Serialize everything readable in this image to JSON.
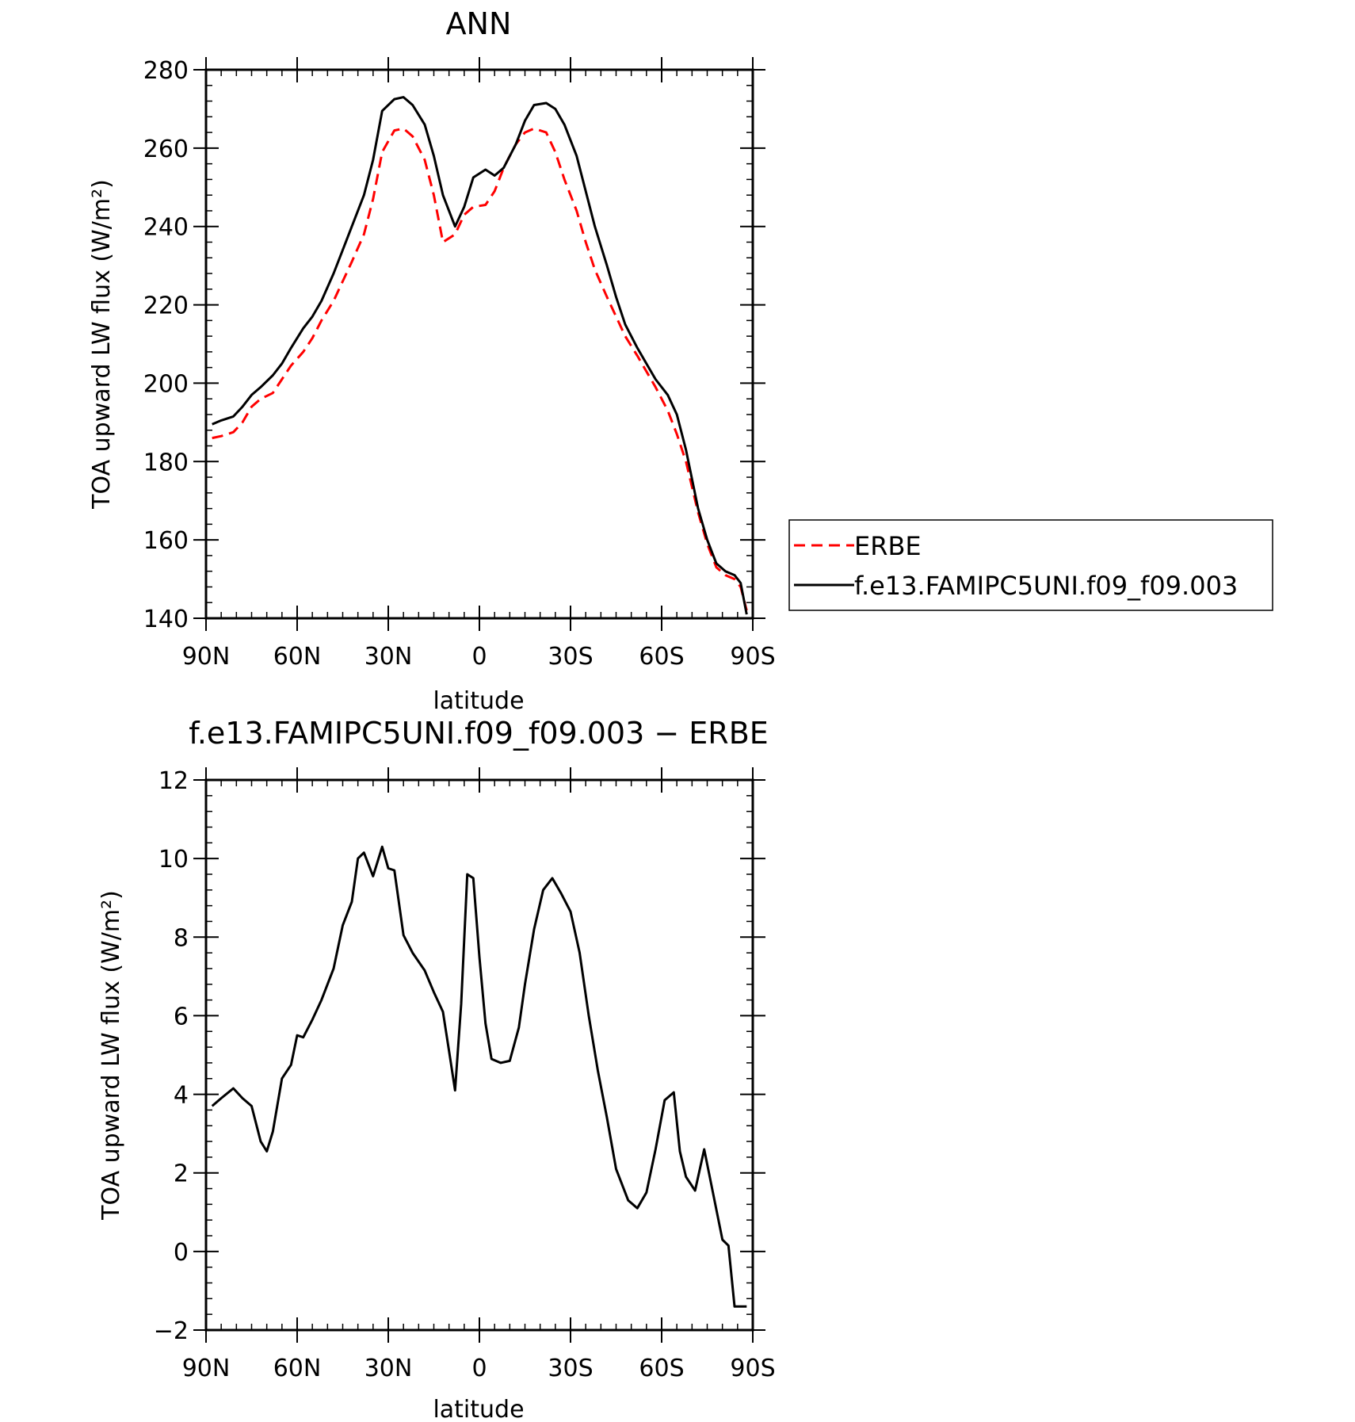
{
  "chart_data": [
    {
      "type": "line",
      "title": "ANN",
      "xlabel": "latitude",
      "ylabel": "TOA upward LW flux (W/m²)",
      "ylim": [
        140,
        280
      ],
      "yticks": [
        "140",
        "160",
        "180",
        "200",
        "220",
        "240",
        "260",
        "280"
      ],
      "xlim": [
        90,
        -90
      ],
      "xticks": [
        {
          "value": 90,
          "label": "90N"
        },
        {
          "value": 60,
          "label": "60N"
        },
        {
          "value": 30,
          "label": "30N"
        },
        {
          "value": 0,
          "label": "0"
        },
        {
          "value": -30,
          "label": "30S"
        },
        {
          "value": -60,
          "label": "60S"
        },
        {
          "value": -90,
          "label": "90S"
        }
      ],
      "grid": false,
      "legend_position": "right",
      "series": [
        {
          "name": "ERBE",
          "color": "#ff0000",
          "style": "dashed",
          "x": [
            88,
            85,
            81,
            78,
            75,
            72,
            68,
            65,
            62,
            58,
            55,
            52,
            48,
            45,
            42,
            38,
            35,
            32,
            28,
            25,
            22,
            18,
            15,
            12,
            8,
            5,
            2,
            -2,
            -5,
            -8,
            -12,
            -15,
            -18,
            -22,
            -25,
            -28,
            -32,
            -35,
            -38,
            -42,
            -45,
            -48,
            -52,
            -55,
            -58,
            -62,
            -65,
            -68,
            -72,
            -75,
            -78,
            -81,
            -84,
            -86,
            -88
          ],
          "y": [
            186,
            186.5,
            187.5,
            190,
            194,
            196,
            197.5,
            201,
            204.5,
            208,
            211.5,
            216,
            221,
            226,
            231,
            238,
            247,
            259,
            264.5,
            265,
            263,
            257,
            248,
            236,
            238,
            243,
            245,
            245.5,
            249,
            255,
            261,
            264,
            265,
            264,
            259,
            252,
            244,
            236,
            229,
            222,
            217,
            212,
            207,
            203,
            199,
            193,
            187,
            180,
            167,
            159,
            153,
            151,
            150,
            148,
            142
          ]
        },
        {
          "name": "f.e13.FAMIPC5UNI.f09_f09.003",
          "color": "#000000",
          "style": "solid",
          "x": [
            88,
            85,
            81,
            78,
            75,
            72,
            68,
            65,
            62,
            58,
            55,
            52,
            48,
            45,
            42,
            38,
            35,
            32,
            28,
            25,
            22,
            18,
            15,
            12,
            8,
            5,
            2,
            -2,
            -5,
            -8,
            -12,
            -15,
            -18,
            -22,
            -25,
            -28,
            -32,
            -35,
            -38,
            -42,
            -45,
            -48,
            -52,
            -55,
            -58,
            -62,
            -65,
            -68,
            -72,
            -75,
            -78,
            -81,
            -84,
            -86,
            -88
          ],
          "y": [
            189.5,
            190.5,
            191.5,
            194,
            197,
            199,
            202,
            205,
            209,
            214,
            217,
            221,
            228,
            234,
            240,
            248,
            257,
            269.5,
            272.5,
            273,
            271,
            266,
            258,
            248,
            240,
            245,
            252.5,
            254.5,
            253,
            255,
            261,
            267,
            271,
            271.5,
            270,
            266,
            258,
            249,
            240,
            230,
            222,
            215,
            209,
            205,
            201,
            197,
            192,
            183,
            168,
            160,
            154,
            152,
            151,
            149,
            141
          ]
        }
      ]
    },
    {
      "type": "line",
      "title": "f.e13.FAMIPC5UNI.f09_f09.003 − ERBE",
      "xlabel": "latitude",
      "ylabel": "TOA upward LW flux (W/m²)",
      "ylim": [
        -2,
        12
      ],
      "yticks": [
        "−2",
        "0",
        "2",
        "4",
        "6",
        "8",
        "10",
        "12"
      ],
      "xlim": [
        90,
        -90
      ],
      "xticks": [
        {
          "value": 90,
          "label": "90N"
        },
        {
          "value": 60,
          "label": "60N"
        },
        {
          "value": 30,
          "label": "30N"
        },
        {
          "value": 0,
          "label": "0"
        },
        {
          "value": -30,
          "label": "30S"
        },
        {
          "value": -60,
          "label": "60S"
        },
        {
          "value": -90,
          "label": "90S"
        }
      ],
      "grid": false,
      "series": [
        {
          "color": "#000000",
          "style": "solid",
          "x": [
            88,
            85,
            81,
            78,
            75,
            72,
            70,
            68,
            65,
            62,
            60,
            58,
            55,
            52,
            48,
            45,
            42,
            40,
            38,
            35,
            32,
            30,
            28,
            25,
            22,
            18,
            15,
            12,
            10,
            8,
            6,
            4,
            2,
            0,
            -2,
            -4,
            -7,
            -10,
            -13,
            -15,
            -18,
            -21,
            -24,
            -27,
            -30,
            -33,
            -36,
            -39,
            -42,
            -45,
            -49,
            -52,
            -55,
            -58,
            -61,
            -64,
            -66,
            -68,
            -71,
            -74,
            -77,
            -80,
            -82,
            -84,
            -86,
            -88
          ],
          "y": [
            3.7,
            3.9,
            4.15,
            3.9,
            3.7,
            2.8,
            2.55,
            3.05,
            4.4,
            4.75,
            5.5,
            5.45,
            5.9,
            6.4,
            7.2,
            8.3,
            8.9,
            10.0,
            10.15,
            9.55,
            10.3,
            9.75,
            9.7,
            8.05,
            7.6,
            7.15,
            6.6,
            6.1,
            5.1,
            4.1,
            6.3,
            9.6,
            9.5,
            7.5,
            5.8,
            4.9,
            4.8,
            4.85,
            5.7,
            6.8,
            8.2,
            9.2,
            9.5,
            9.1,
            8.65,
            7.6,
            6.0,
            4.6,
            3.4,
            2.1,
            1.3,
            1.1,
            1.5,
            2.6,
            3.85,
            4.05,
            2.55,
            1.9,
            1.55,
            2.6,
            1.45,
            0.3,
            0.15,
            -1.4,
            -1.4,
            -1.4
          ]
        }
      ]
    }
  ]
}
